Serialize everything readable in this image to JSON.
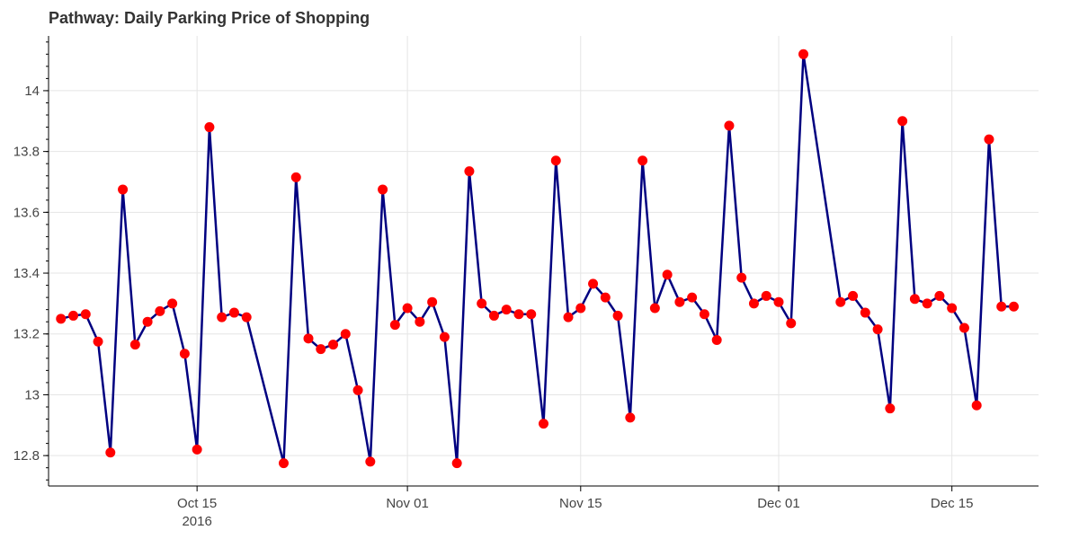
{
  "chart_data": {
    "type": "line",
    "title": "Pathway: Daily Parking Price of Shopping",
    "xlabel": "",
    "ylabel": "",
    "x_axis_type": "date",
    "xlim": [
      "2016-10-03",
      "2016-12-22"
    ],
    "ylim": [
      12.7,
      14.18
    ],
    "grid": true,
    "x_ticks": [
      {
        "date": "2016-10-15",
        "label": "Oct 15",
        "sublabel": "2016"
      },
      {
        "date": "2016-11-01",
        "label": "Nov 01"
      },
      {
        "date": "2016-11-15",
        "label": "Nov 15"
      },
      {
        "date": "2016-12-01",
        "label": "Dec 01"
      },
      {
        "date": "2016-12-15",
        "label": "Dec 15"
      }
    ],
    "y_ticks": [
      {
        "value": 12.8,
        "label": "12.8"
      },
      {
        "value": 13.0,
        "label": "13"
      },
      {
        "value": 13.2,
        "label": "13.2"
      },
      {
        "value": 13.4,
        "label": "13.4"
      },
      {
        "value": 13.6,
        "label": "13.6"
      },
      {
        "value": 13.8,
        "label": "13.8"
      },
      {
        "value": 14.0,
        "label": "14"
      }
    ],
    "line_color": "#000080",
    "marker_color": "#ff0000",
    "series": [
      {
        "x": [
          "2016-10-04",
          "2016-10-05",
          "2016-10-06",
          "2016-10-07",
          "2016-10-08",
          "2016-10-09",
          "2016-10-10",
          "2016-10-11",
          "2016-10-12",
          "2016-10-13",
          "2016-10-14",
          "2016-10-15",
          "2016-10-16",
          "2016-10-17",
          "2016-10-18",
          "2016-10-19",
          "2016-10-22",
          "2016-10-23",
          "2016-10-24",
          "2016-10-25",
          "2016-10-26",
          "2016-10-27",
          "2016-10-28",
          "2016-10-29",
          "2016-10-30",
          "2016-10-31",
          "2016-11-01",
          "2016-11-02",
          "2016-11-03",
          "2016-11-04",
          "2016-11-05",
          "2016-11-06",
          "2016-11-07",
          "2016-11-08",
          "2016-11-09",
          "2016-11-10",
          "2016-11-11",
          "2016-11-12",
          "2016-11-13",
          "2016-11-14",
          "2016-11-15",
          "2016-11-16",
          "2016-11-17",
          "2016-11-18",
          "2016-11-19",
          "2016-11-20",
          "2016-11-21",
          "2016-11-22",
          "2016-11-23",
          "2016-11-24",
          "2016-11-25",
          "2016-11-26",
          "2016-11-27",
          "2016-11-28",
          "2016-11-29",
          "2016-11-30",
          "2016-12-01",
          "2016-12-02",
          "2016-12-03",
          "2016-12-06",
          "2016-12-07",
          "2016-12-08",
          "2016-12-09",
          "2016-12-10",
          "2016-12-11",
          "2016-12-12",
          "2016-12-13",
          "2016-12-14",
          "2016-12-15",
          "2016-12-16",
          "2016-12-17",
          "2016-12-18",
          "2016-12-19",
          "2016-12-20"
        ],
        "values": [
          13.25,
          13.26,
          13.265,
          13.175,
          12.81,
          13.675,
          13.165,
          13.24,
          13.275,
          13.3,
          13.135,
          12.82,
          13.88,
          13.255,
          13.27,
          13.255,
          12.775,
          13.715,
          13.185,
          13.15,
          13.165,
          13.2,
          13.015,
          12.78,
          13.675,
          13.23,
          13.285,
          13.24,
          13.305,
          13.19,
          12.775,
          13.735,
          13.3,
          13.26,
          13.28,
          13.265,
          13.265,
          12.905,
          13.77,
          13.255,
          13.285,
          13.365,
          13.32,
          13.26,
          12.925,
          13.77,
          13.285,
          13.395,
          13.305,
          13.32,
          13.265,
          13.18,
          13.885,
          13.385,
          13.3,
          13.325,
          13.305,
          13.235,
          14.12,
          13.305,
          13.325,
          13.27,
          13.215,
          12.955,
          13.9,
          13.315,
          13.3,
          13.325,
          13.285,
          13.22,
          12.965,
          13.84,
          13.29,
          13.29
        ]
      }
    ]
  }
}
